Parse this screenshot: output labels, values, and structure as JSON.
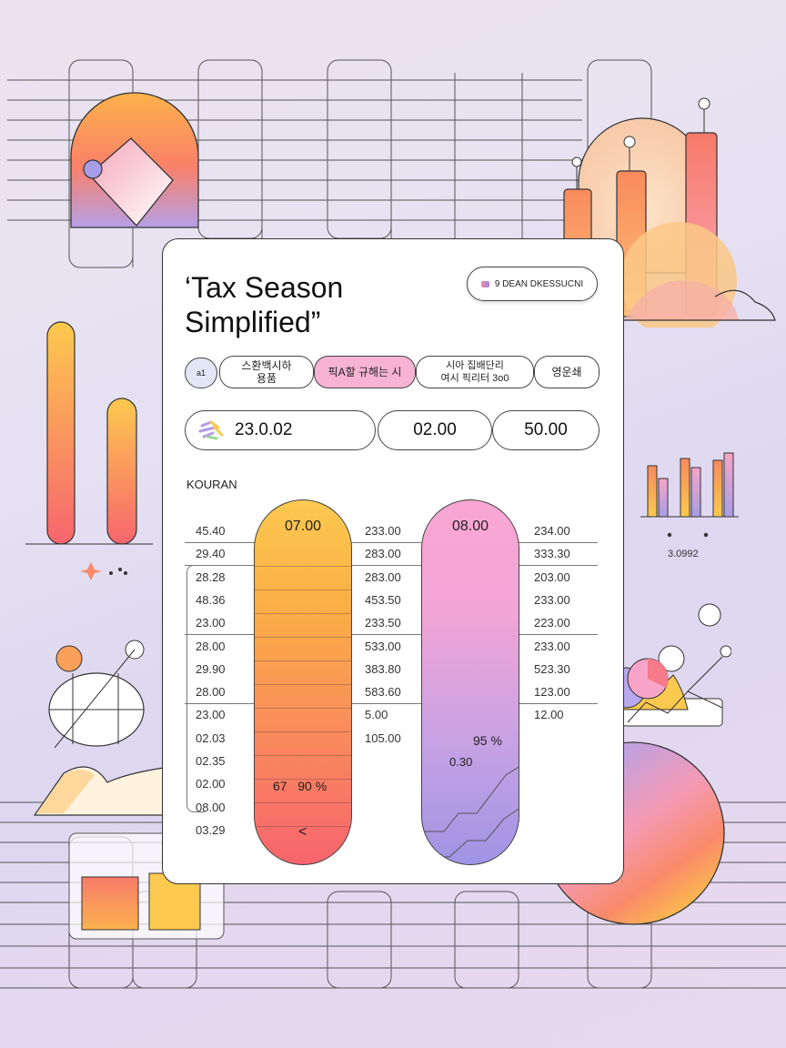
{
  "header": {
    "title_line1": "‘Tax Season",
    "title_line2": "Simplified”",
    "badge_label": "9 DEAN DKESSUCNI"
  },
  "tabs": [
    {
      "label": "스환백시하\n용품",
      "icon_text": "a1"
    },
    {
      "label": "픽A할 규해는 시"
    },
    {
      "label": "시아 집배단리\n여시 픽리터  3o0"
    },
    {
      "label": "영운쇄"
    }
  ],
  "stats": [
    {
      "value": "23.0.02",
      "icon": "sparkle-logo-icon"
    },
    {
      "value": "02.00"
    },
    {
      "value": "50.00"
    }
  ],
  "section_label": "KOURAN",
  "columns": [
    {
      "header": "07.00",
      "note": "67   90 %",
      "arrow": "<"
    },
    {
      "header": "08.00",
      "note1": "95 %",
      "note2": "0.30"
    }
  ],
  "table_left": [
    "45.40",
    "29.40",
    "28.28",
    "48.36",
    "23.00",
    "28.00",
    "29.90",
    "28.00",
    "23.00",
    "02.03",
    "02.35",
    "02.00",
    "08.00",
    "03.29"
  ],
  "table_middle": [
    "233.00",
    "283.00",
    "283.00",
    "453.50",
    "233.50",
    "533.00",
    "383.80",
    "583.60",
    "5.00",
    "105.00"
  ],
  "table_right": [
    "234.00",
    "333.30",
    "203.00",
    "233.00",
    "223.00",
    "233.00",
    "523.30",
    "123.00",
    "12.00"
  ],
  "right_chart_label": "3.0992",
  "colors": {
    "orange": "#fbad46",
    "pink": "#f9a6d4",
    "purple": "#9f94e4",
    "coral": "#f7646e"
  }
}
